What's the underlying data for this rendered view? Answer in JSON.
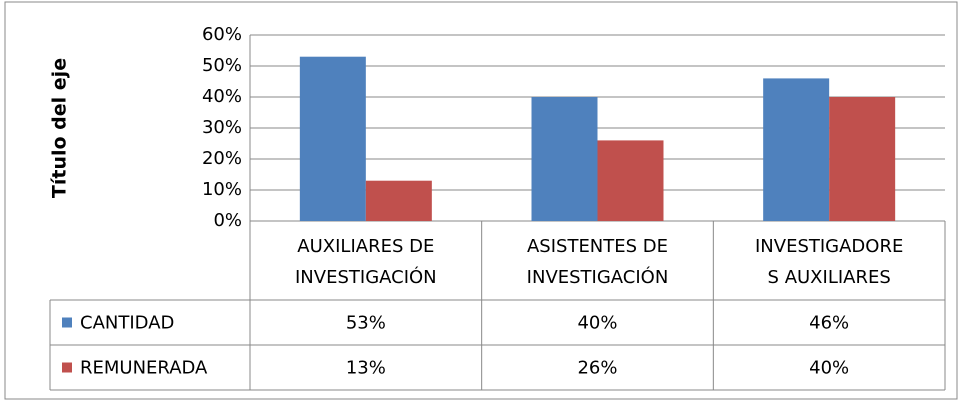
{
  "chart_data": {
    "type": "bar",
    "y_axis_label": "Título del eje",
    "categories": [
      [
        "AUXILIARES DE",
        "INVESTIGACIÓN"
      ],
      [
        "ASISTENTES DE",
        "INVESTIGACIÓN"
      ],
      [
        "INVESTIGADORE",
        "S AUXILIARES"
      ]
    ],
    "series": [
      {
        "name": "CANTIDAD",
        "color": "#4f81bd",
        "values": [
          53,
          40,
          46
        ],
        "value_labels": [
          "53%",
          "40%",
          "46%"
        ]
      },
      {
        "name": "REMUNERADA",
        "color": "#c0504d",
        "values": [
          13,
          26,
          40
        ],
        "value_labels": [
          "13%",
          "26%",
          "40%"
        ]
      }
    ],
    "ylim": [
      0,
      60
    ],
    "yticks": [
      {
        "value": 0,
        "label": "0%"
      },
      {
        "value": 10,
        "label": "10%"
      },
      {
        "value": 20,
        "label": "20%"
      },
      {
        "value": 30,
        "label": "30%"
      },
      {
        "value": 40,
        "label": "40%"
      },
      {
        "value": 50,
        "label": "50%"
      },
      {
        "value": 60,
        "label": "60%"
      }
    ],
    "grid": true,
    "data_table": true
  }
}
